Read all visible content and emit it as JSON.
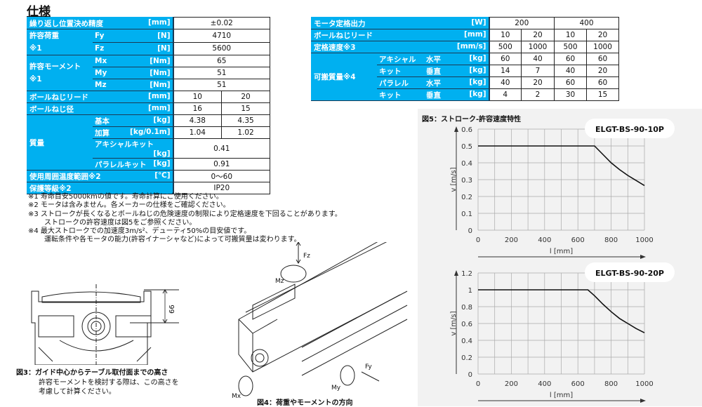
{
  "title": "仕様",
  "left_table": {
    "rows": [
      {
        "label": "繰り返し位置決め精度",
        "unit": "[mm]",
        "value": "±0.02"
      },
      {
        "group": "許容荷重",
        "group_note": "※1",
        "sub": "Fy",
        "unit": "[N]",
        "value": "4710"
      },
      {
        "sub": "Fz",
        "unit": "[N]",
        "value": "5600"
      },
      {
        "group": "許容モーメント",
        "group_note": "※1",
        "sub": "Mx",
        "unit": "[Nm]",
        "value": "65"
      },
      {
        "sub": "My",
        "unit": "[Nm]",
        "value": "51"
      },
      {
        "sub": "Mz",
        "unit": "[Nm]",
        "value": "51"
      }
    ],
    "lead": {
      "label": "ボールねじリード",
      "unit": "[mm]",
      "values": [
        "10",
        "20"
      ]
    },
    "diameter": {
      "label": "ボールねじ径",
      "unit": "[mm]",
      "values": [
        "16",
        "15"
      ]
    },
    "mass": {
      "label": "質量",
      "basic": {
        "sub": "基本",
        "unit": "[kg]",
        "values": [
          "4.38",
          "4.35"
        ]
      },
      "add": {
        "sub": "加算",
        "unit": "[kg/0.1m]",
        "values": [
          "1.04",
          "1.02"
        ]
      },
      "axial": {
        "sub": "アキシャルキット",
        "unit": "[kg]",
        "value": "0.41"
      },
      "parallel": {
        "sub": "パラレルキット",
        "unit": "[kg]",
        "value": "0.91"
      }
    },
    "temp": {
      "label": "使用周囲温度範囲※2",
      "unit": "[℃]",
      "value": "0～60"
    },
    "ip": {
      "label": "保護等級※2",
      "value": "IP20"
    }
  },
  "right_table": {
    "motor": {
      "label": "モータ定格出力",
      "unit": "[W]",
      "values": [
        "200",
        "400"
      ]
    },
    "lead": {
      "label": "ボールねじリード",
      "unit": "[mm]",
      "values": [
        "10",
        "20",
        "10",
        "20"
      ]
    },
    "speed": {
      "label": "定格速度※3",
      "unit": "[mm/s]",
      "values": [
        "500",
        "1000",
        "500",
        "1000"
      ]
    },
    "payload": {
      "label": "可搬質量※4",
      "axial": [
        "アキシャル",
        "キット"
      ],
      "parallel": [
        "パラレル",
        "キット"
      ],
      "horizontal": "水平",
      "vertical": "垂直",
      "unit": "[kg]",
      "axial_h": [
        "60",
        "40",
        "60",
        "60"
      ],
      "axial_v": [
        "14",
        "7",
        "40",
        "20"
      ],
      "parallel_h": [
        "40",
        "20",
        "60",
        "60"
      ],
      "parallel_v": [
        "4",
        "2",
        "30",
        "15"
      ]
    }
  },
  "notes": [
    "※1 寿命目安5000kmの値です。寿命計算にご使用ください。",
    "※2 モータは含みません。各メーカーの仕様をご確認ください。",
    "※3 ストロークが長くなるとボールねじの危険速度の制限により定格速度を下回ることがあります。",
    "ストロークの許容速度は図5をご参照ください。",
    "※4 最大ストロークでの加速度3m/s²、デューティ50%の目安値です。",
    "運転条件や各モータの能力(許容イナーシャなど)によって可搬質量は変わります。"
  ],
  "fig3": {
    "caption": "図3：ガイド中心からテーブル取付面までの高さ",
    "text1": "許容モーメントを検討する際は、この高さを",
    "text2": "考慮して計算ください。",
    "dim": "66"
  },
  "fig4": {
    "caption": "図4：荷重やモーメントの方向",
    "labels": [
      "Fz",
      "Mz",
      "Mx",
      "My",
      "Fy"
    ]
  },
  "fig5": {
    "caption": "図5：ストローク-許容速度特性"
  },
  "chart_data": [
    {
      "type": "line",
      "title": "ELGT-BS-90-10P",
      "xlabel": "l [mm]",
      "ylabel": "v [m/s]",
      "xlim": [
        0,
        1000
      ],
      "ylim": [
        0,
        0.6
      ],
      "xticks": [
        0,
        200,
        400,
        600,
        800,
        1000
      ],
      "yticks": [
        0,
        0.1,
        0.2,
        0.3,
        0.4,
        0.5,
        0.6
      ],
      "grid": true,
      "x": [
        0,
        700,
        750,
        800,
        850,
        900,
        950,
        1000
      ],
      "y": [
        0.5,
        0.5,
        0.45,
        0.4,
        0.36,
        0.325,
        0.295,
        0.265
      ]
    },
    {
      "type": "line",
      "title": "ELGT-BS-90-20P",
      "xlabel": "l [mm]",
      "ylabel": "v [m/s]",
      "xlim": [
        0,
        1000
      ],
      "ylim": [
        0,
        1.2
      ],
      "xticks": [
        0,
        200,
        400,
        600,
        800,
        1000
      ],
      "yticks": [
        0,
        0.2,
        0.4,
        0.6,
        0.8,
        1,
        1.2
      ],
      "grid": true,
      "x": [
        0,
        660,
        700,
        750,
        800,
        850,
        900,
        950,
        1000
      ],
      "y": [
        1,
        1,
        0.93,
        0.83,
        0.74,
        0.66,
        0.6,
        0.54,
        0.49
      ]
    }
  ]
}
